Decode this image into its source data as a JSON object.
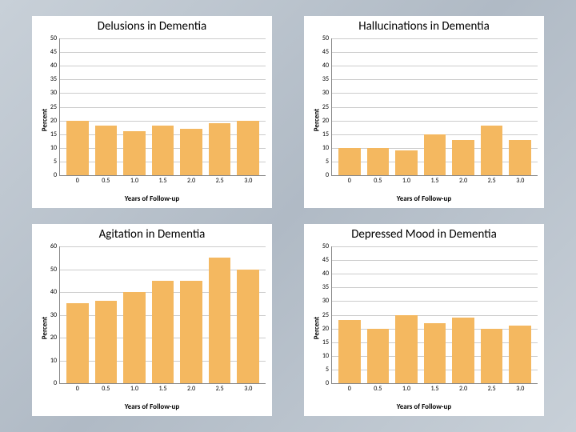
{
  "background_gradient": [
    "#c8d0d8",
    "#b0bac5",
    "#c8d0d8"
  ],
  "panel_background": "#ffffff",
  "bar_color": "#f4b860",
  "grid_color": "#cccccc",
  "axis_color": "#888888",
  "text_color": "#000000",
  "title_fontsize": 15,
  "tick_fontsize": 8,
  "axis_label_fontsize": 9,
  "charts": [
    {
      "title": "Delusions in Dementia",
      "type": "bar",
      "ylabel": "Percent",
      "xlabel": "Years of Follow-up",
      "ylim": [
        0,
        50
      ],
      "ytick_step": 5,
      "categories": [
        "0",
        "0.5",
        "1.0",
        "1.5",
        "2.0",
        "2.5",
        "3.0"
      ],
      "values": [
        20,
        18,
        16,
        18,
        17,
        19,
        20
      ]
    },
    {
      "title": "Hallucinations in Dementia",
      "type": "bar",
      "ylabel": "Percent",
      "xlabel": "Years of Follow-up",
      "ylim": [
        0,
        50
      ],
      "ytick_step": 5,
      "categories": [
        "0",
        "0.5",
        "1.0",
        "1.5",
        "2.0",
        "2.5",
        "3.0"
      ],
      "values": [
        10,
        10,
        9,
        15,
        13,
        18,
        13
      ]
    },
    {
      "title": "Agitation  in Dementia",
      "type": "bar",
      "ylabel": "Percent",
      "xlabel": "Years of Follow-up",
      "ylim": [
        0,
        60
      ],
      "ytick_step": 10,
      "categories": [
        "0",
        "0.5",
        "1.0",
        "1.5",
        "2.0",
        "2.5",
        "3.0"
      ],
      "values": [
        35,
        36,
        40,
        45,
        45,
        55,
        50
      ]
    },
    {
      "title": "Depressed Mood in Dementia",
      "type": "bar",
      "ylabel": "Percent",
      "xlabel": "Years of Follow-up",
      "ylim": [
        0,
        50
      ],
      "ytick_step": 5,
      "categories": [
        "0",
        "0.5",
        "1.0",
        "1.5",
        "2.0",
        "2.5",
        "3.0"
      ],
      "values": [
        23,
        20,
        25,
        22,
        24,
        20,
        21
      ]
    }
  ]
}
